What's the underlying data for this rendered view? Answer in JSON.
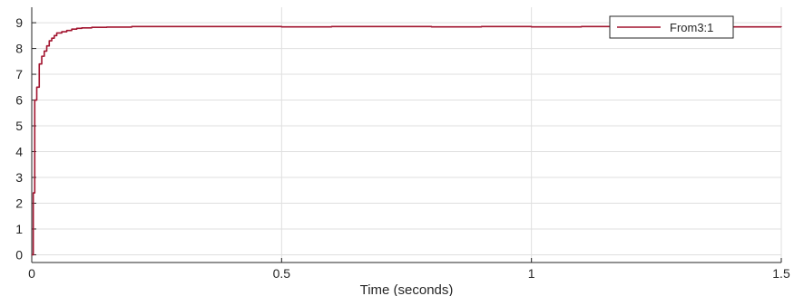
{
  "chart_data": {
    "type": "line",
    "title": "",
    "xlabel": "Time (seconds)",
    "ylabel": "",
    "xlim": [
      0,
      1.5
    ],
    "ylim": [
      -0.3,
      9.6
    ],
    "grid": true,
    "legend_position": "top-right",
    "x_ticks": [
      0,
      0.5,
      1,
      1.5
    ],
    "x_tick_labels": [
      "0",
      "0.5",
      "1",
      "1.5"
    ],
    "y_ticks": [
      0,
      1,
      2,
      3,
      4,
      5,
      6,
      7,
      8,
      9
    ],
    "y_tick_labels": [
      "0",
      "1",
      "2",
      "3",
      "4",
      "5",
      "6",
      "7",
      "8",
      "9"
    ],
    "colors": {
      "series": "#a2142f",
      "grid": "#dfdfdf",
      "axis": "#262626"
    },
    "series": [
      {
        "name": "From3:1",
        "x": [
          0,
          0.003,
          0.006,
          0.01,
          0.015,
          0.02,
          0.025,
          0.03,
          0.035,
          0.04,
          0.045,
          0.05,
          0.06,
          0.07,
          0.08,
          0.09,
          0.1,
          0.12,
          0.15,
          0.2,
          0.3,
          0.4,
          0.5,
          0.6,
          0.7,
          0.8,
          0.9,
          1.0,
          1.1,
          1.2,
          1.3,
          1.4,
          1.5
        ],
        "y": [
          0,
          2.4,
          6.0,
          6.5,
          7.4,
          7.7,
          7.9,
          8.1,
          8.3,
          8.4,
          8.5,
          8.6,
          8.65,
          8.7,
          8.75,
          8.78,
          8.8,
          8.82,
          8.83,
          8.85,
          8.85,
          8.85,
          8.84,
          8.85,
          8.85,
          8.84,
          8.85,
          8.84,
          8.85,
          8.84,
          8.85,
          8.84,
          8.83
        ]
      }
    ]
  }
}
